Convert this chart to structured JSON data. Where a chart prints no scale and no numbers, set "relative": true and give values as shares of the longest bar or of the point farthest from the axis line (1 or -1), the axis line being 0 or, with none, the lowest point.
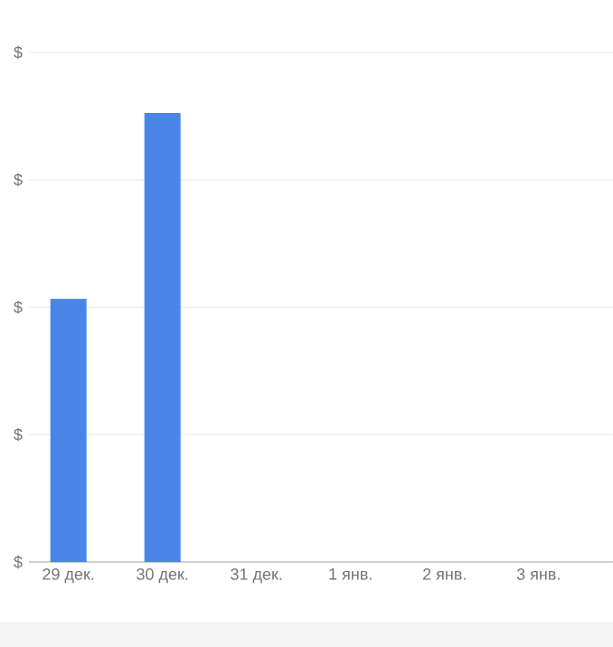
{
  "chart_data": {
    "type": "bar",
    "relative": true,
    "categories": [
      "29 дек.",
      "30 дек.",
      "31 дек.",
      "1 янв.",
      "2 янв.",
      "3 янв."
    ],
    "values": [
      0.586,
      1,
      0,
      0,
      0,
      0
    ],
    "color": "#4a86e8",
    "annotations": [
      "$",
      "$",
      "$",
      "$",
      "$"
    ],
    "grid": "y"
  }
}
